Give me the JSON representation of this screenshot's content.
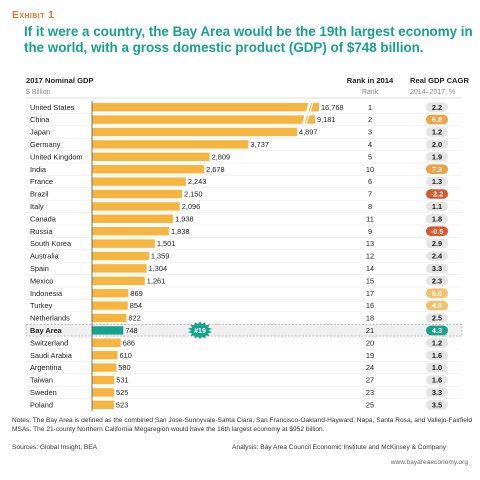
{
  "header": {
    "exhibit": "Exhibit 1",
    "headline": "If it were a country, the Bay Area would be the 19th largest economy in the world, with a gross domestic product (GDP) of $748 billion."
  },
  "chart_data": {
    "type": "bar",
    "orientation": "horizontal",
    "title": "2017 Nominal GDP",
    "unit_label": "$ Billion",
    "rank_header": "Rank in 2014",
    "rank_subheader": "Rank",
    "cagr_header": "Real GDP CAGR",
    "cagr_subheader": "2014–2017, %",
    "highlight_badge": "#19",
    "axis_break_between": [
      4897,
      9181
    ],
    "categories": [
      "United States",
      "China",
      "Japan",
      "Germany",
      "United Kingdom",
      "India",
      "France",
      "Brazil",
      "Italy",
      "Canada",
      "Russia",
      "South Korea",
      "Australia",
      "Spain",
      "Mexico",
      "Indonesia",
      "Turkey",
      "Netherlands",
      "Bay Area",
      "Switzerland",
      "Saudi Arabia",
      "Argentina",
      "Taiwan",
      "Sweden",
      "Poland"
    ],
    "values": [
      16768,
      9181,
      4897,
      3737,
      2809,
      2678,
      2243,
      2150,
      2096,
      1938,
      1838,
      1501,
      1359,
      1304,
      1261,
      869,
      854,
      822,
      748,
      686,
      610,
      580,
      531,
      525,
      523
    ],
    "value_labels": [
      "16,768",
      "9,181",
      "4,897",
      "3,737",
      "2,809",
      "2,678",
      "2,243",
      "2,150",
      "2,096",
      "1,938",
      "1,838",
      "1,501",
      "1,359",
      "1,304",
      "1,261",
      "869",
      "854",
      "822",
      "748",
      "686",
      "610",
      "580",
      "531",
      "525",
      "523"
    ],
    "rank_2014": [
      "1",
      "2",
      "3",
      "4",
      "5",
      "10",
      "6",
      "7",
      "8",
      "11",
      "9",
      "13",
      "12",
      "14",
      "15",
      "17",
      "16",
      "18",
      "21",
      "20",
      "19",
      "24",
      "27",
      "23",
      "25"
    ],
    "cagr": [
      "2.2",
      "6.8",
      "1.2",
      "2.0",
      "1.9",
      "7.3",
      "1.3",
      "-2.2",
      "1.1",
      "1.8",
      "-0.5",
      "2.9",
      "2.4",
      "3.3",
      "2.3",
      "5.0",
      "4.9",
      "2.5",
      "4.3",
      "1.2",
      "1.6",
      "1.0",
      "1.6",
      "3.3",
      "3.5"
    ],
    "cagr_style": [
      "gray",
      "orange",
      "gray",
      "gray",
      "gray",
      "orange",
      "gray",
      "red",
      "gray",
      "gray",
      "red",
      "gray",
      "gray",
      "gray",
      "gray",
      "lightorange",
      "lightorange",
      "gray",
      "teal",
      "gray",
      "gray",
      "gray",
      "gray",
      "gray",
      "gray"
    ],
    "highlight_index": 18,
    "colors": {
      "bar": "#f5b53f",
      "highlight_bar": "#17a28d",
      "cagr_gray": "#e4e4e4",
      "cagr_orange": "#f0a045",
      "cagr_lightorange": "#f5c06a",
      "cagr_red": "#d9572b",
      "cagr_teal": "#17a28d"
    }
  },
  "footer": {
    "notes": "Notes: The Bay Area is defined as the combined San Jose-Sunnyvale-Santa Clara, San Francisco-Oakland-Hayward, Napa, Santa Rosa, and Vallejo-Fairfield MSAs. The 21-county Northern California Megaregion would have the 16th largest economy at $952 billion.",
    "sources": "Sources: Global Insight, BEA",
    "analysis": "Analysis: Bay Area Council Economic Institute and McKinsey & Company",
    "website": "www.bayareaeconomy.org"
  }
}
